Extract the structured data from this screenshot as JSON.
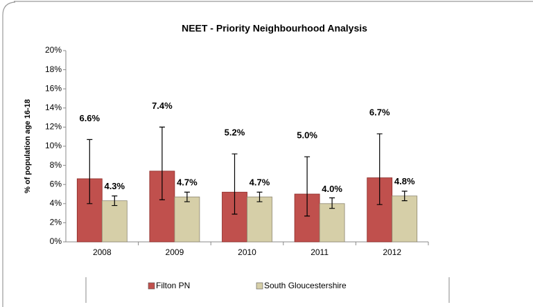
{
  "chart_data": {
    "type": "bar",
    "title": "NEET - Priority Neighbourhood Analysis",
    "y_label": "% of population age 16-18",
    "categories": [
      "2008",
      "2009",
      "2010",
      "2011",
      "2012"
    ],
    "series": [
      {
        "name": "Filton PN",
        "color": "#c0504d",
        "values": [
          6.6,
          7.4,
          5.2,
          5.0,
          6.7
        ],
        "value_labels": [
          "6.6%",
          "7.4%",
          "5.2%",
          "5.0%",
          "6.7%"
        ],
        "lower": [
          4.0,
          4.4,
          2.9,
          2.7,
          3.9
        ],
        "upper": [
          10.7,
          12.0,
          9.2,
          8.9,
          11.3
        ]
      },
      {
        "name": "South Gloucestershire",
        "color": "#d6cfa8",
        "values": [
          4.3,
          4.7,
          4.7,
          4.0,
          4.8
        ],
        "value_labels": [
          "4.3%",
          "4.7%",
          "4.7%",
          "4.0%",
          "4.8%"
        ],
        "lower": [
          3.8,
          4.2,
          4.2,
          3.5,
          4.3
        ],
        "upper": [
          4.8,
          5.2,
          5.2,
          4.6,
          5.3
        ]
      }
    ],
    "ylim": [
      0,
      20
    ],
    "yticks": [
      {
        "value": 0,
        "label": "0%"
      },
      {
        "value": 2,
        "label": "2%"
      },
      {
        "value": 4,
        "label": "4%"
      },
      {
        "value": 6,
        "label": "6%"
      },
      {
        "value": 8,
        "label": "8%"
      },
      {
        "value": 10,
        "label": "10%"
      },
      {
        "value": 12,
        "label": "12%"
      },
      {
        "value": 14,
        "label": "14%"
      },
      {
        "value": 16,
        "label": "16%"
      },
      {
        "value": 18,
        "label": "18%"
      },
      {
        "value": 20,
        "label": "20%"
      }
    ],
    "legend": "bottom"
  }
}
